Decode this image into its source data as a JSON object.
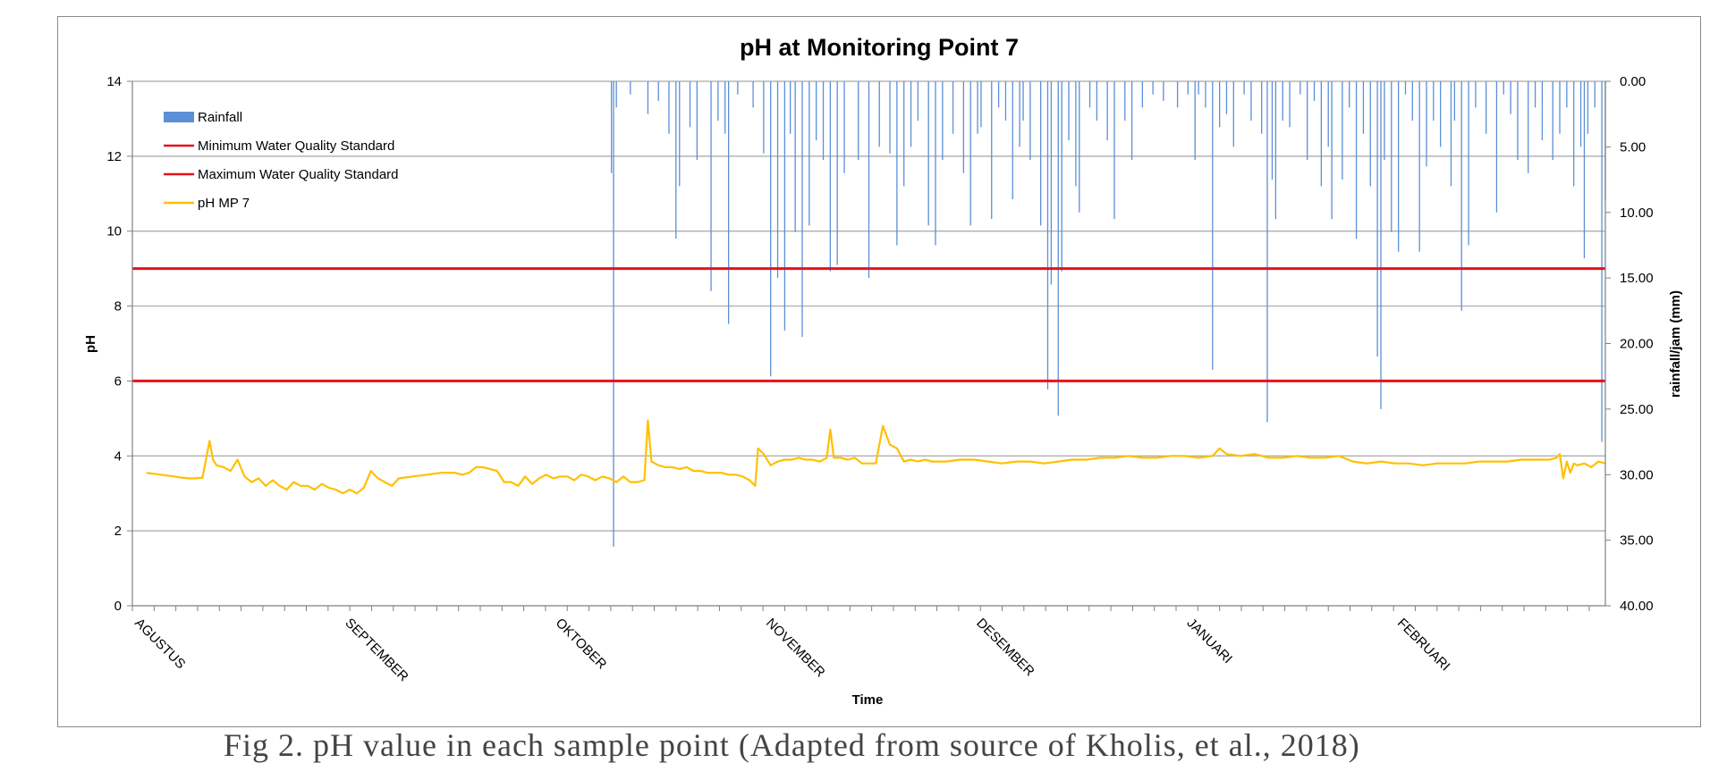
{
  "caption": "Fig 2. pH value in each sample point (Adapted from source of Kholis, et al., 2018)",
  "chart_data": {
    "type": "line",
    "title": "pH at Monitoring Point 7",
    "xlabel": "Time",
    "ylabel_left": "pH",
    "ylabel_right": "rainfall/jam (mm)",
    "ylim_left": [
      0,
      14
    ],
    "ylim_right": [
      0,
      40
    ],
    "right_axis_inverted": true,
    "yticks_left": [
      "0",
      "2",
      "4",
      "6",
      "8",
      "10",
      "12",
      "14"
    ],
    "yticks_right": [
      "0.00",
      "5.00",
      "10.00",
      "15.00",
      "20.00",
      "25.00",
      "30.00",
      "35.00",
      "40.00"
    ],
    "months": [
      "AGUSTUS",
      "SEPTEMBER",
      "OKTOBER",
      "NOVEMBER",
      "DESEMBER",
      "JANUARI",
      "FEBRUARI"
    ],
    "x_days_total": 210,
    "grid": true,
    "legend_position": "top-left",
    "colors": {
      "rainfall": "#5b8fd6",
      "standard": "#e3131b",
      "ph": "#ffc000",
      "grid": "#a6a6a6"
    },
    "legend": [
      {
        "label": "Rainfall",
        "kind": "bar",
        "color": "#5b8fd6"
      },
      {
        "label": "Minimum Water Quality Standard",
        "kind": "line",
        "color": "#e3131b"
      },
      {
        "label": "Maximum Water Quality Standard",
        "kind": "line",
        "color": "#e3131b"
      },
      {
        "label": "pH MP 7",
        "kind": "line",
        "color": "#ffc000"
      }
    ],
    "series": [
      {
        "name": "Minimum Water Quality Standard",
        "constant": 6
      },
      {
        "name": "Maximum Water Quality Standard",
        "constant": 9
      },
      {
        "name": "pH MP 7",
        "points": [
          [
            2,
            3.55
          ],
          [
            4,
            3.5
          ],
          [
            6,
            3.45
          ],
          [
            7,
            3.42
          ],
          [
            8,
            3.4
          ],
          [
            9,
            3.4
          ],
          [
            10,
            3.42
          ],
          [
            11,
            4.4
          ],
          [
            11.5,
            3.9
          ],
          [
            12,
            3.75
          ],
          [
            13,
            3.7
          ],
          [
            14,
            3.6
          ],
          [
            15,
            3.9
          ],
          [
            16,
            3.45
          ],
          [
            17,
            3.3
          ],
          [
            18,
            3.4
          ],
          [
            19,
            3.2
          ],
          [
            20,
            3.35
          ],
          [
            21,
            3.2
          ],
          [
            22,
            3.1
          ],
          [
            23,
            3.3
          ],
          [
            24,
            3.2
          ],
          [
            25,
            3.2
          ],
          [
            26,
            3.1
          ],
          [
            27,
            3.25
          ],
          [
            28,
            3.15
          ],
          [
            29,
            3.1
          ],
          [
            30,
            3.0
          ],
          [
            31,
            3.1
          ],
          [
            32,
            3.0
          ],
          [
            33,
            3.15
          ],
          [
            34,
            3.6
          ],
          [
            35,
            3.4
          ],
          [
            36,
            3.3
          ],
          [
            37,
            3.2
          ],
          [
            38,
            3.4
          ],
          [
            40,
            3.45
          ],
          [
            42,
            3.5
          ],
          [
            44,
            3.55
          ],
          [
            46,
            3.55
          ],
          [
            47,
            3.5
          ],
          [
            48,
            3.55
          ],
          [
            49,
            3.7
          ],
          [
            50,
            3.7
          ],
          [
            51,
            3.65
          ],
          [
            52,
            3.6
          ],
          [
            53,
            3.3
          ],
          [
            54,
            3.3
          ],
          [
            55,
            3.2
          ],
          [
            56,
            3.45
          ],
          [
            57,
            3.25
          ],
          [
            58,
            3.4
          ],
          [
            59,
            3.5
          ],
          [
            60,
            3.4
          ],
          [
            61,
            3.45
          ],
          [
            62,
            3.45
          ],
          [
            63,
            3.35
          ],
          [
            64,
            3.5
          ],
          [
            65,
            3.45
          ],
          [
            66,
            3.35
          ],
          [
            67,
            3.45
          ],
          [
            68,
            3.4
          ],
          [
            69,
            3.3
          ],
          [
            70,
            3.45
          ],
          [
            71,
            3.3
          ],
          [
            72,
            3.3
          ],
          [
            73,
            3.35
          ],
          [
            73.5,
            4.95
          ],
          [
            74,
            3.85
          ],
          [
            75,
            3.75
          ],
          [
            76,
            3.7
          ],
          [
            77,
            3.7
          ],
          [
            78,
            3.65
          ],
          [
            79,
            3.7
          ],
          [
            80,
            3.6
          ],
          [
            81,
            3.6
          ],
          [
            82,
            3.55
          ],
          [
            83,
            3.55
          ],
          [
            84,
            3.55
          ],
          [
            85,
            3.5
          ],
          [
            86,
            3.5
          ],
          [
            87,
            3.45
          ],
          [
            88,
            3.35
          ],
          [
            88.8,
            3.2
          ],
          [
            89.2,
            4.2
          ],
          [
            90,
            4.05
          ],
          [
            91,
            3.75
          ],
          [
            92,
            3.85
          ],
          [
            93,
            3.9
          ],
          [
            94,
            3.9
          ],
          [
            95,
            3.95
          ],
          [
            96,
            3.9
          ],
          [
            97,
            3.9
          ],
          [
            98,
            3.85
          ],
          [
            99,
            3.95
          ],
          [
            99.5,
            4.7
          ],
          [
            100,
            3.95
          ],
          [
            101,
            3.95
          ],
          [
            102,
            3.9
          ],
          [
            103,
            3.95
          ],
          [
            104,
            3.8
          ],
          [
            105,
            3.8
          ],
          [
            106,
            3.8
          ],
          [
            107,
            4.8
          ],
          [
            108,
            4.3
          ],
          [
            109,
            4.2
          ],
          [
            110,
            3.85
          ],
          [
            111,
            3.9
          ],
          [
            112,
            3.85
          ],
          [
            113,
            3.9
          ],
          [
            114,
            3.85
          ],
          [
            116,
            3.85
          ],
          [
            118,
            3.9
          ],
          [
            120,
            3.9
          ],
          [
            122,
            3.85
          ],
          [
            124,
            3.8
          ],
          [
            126,
            3.85
          ],
          [
            128,
            3.85
          ],
          [
            130,
            3.8
          ],
          [
            132,
            3.85
          ],
          [
            134,
            3.9
          ],
          [
            136,
            3.9
          ],
          [
            138,
            3.95
          ],
          [
            140,
            3.95
          ],
          [
            142,
            4.0
          ],
          [
            144,
            3.95
          ],
          [
            146,
            3.95
          ],
          [
            148,
            4.0
          ],
          [
            150,
            4.0
          ],
          [
            152,
            3.95
          ],
          [
            154,
            4.0
          ],
          [
            155,
            4.2
          ],
          [
            156,
            4.05
          ],
          [
            158,
            4.0
          ],
          [
            160,
            4.05
          ],
          [
            162,
            3.95
          ],
          [
            164,
            3.95
          ],
          [
            166,
            4.0
          ],
          [
            168,
            3.95
          ],
          [
            170,
            3.95
          ],
          [
            172,
            4.0
          ],
          [
            174,
            3.85
          ],
          [
            176,
            3.8
          ],
          [
            178,
            3.85
          ],
          [
            180,
            3.8
          ],
          [
            182,
            3.8
          ],
          [
            184,
            3.75
          ],
          [
            186,
            3.8
          ],
          [
            188,
            3.8
          ],
          [
            190,
            3.8
          ],
          [
            192,
            3.85
          ],
          [
            194,
            3.85
          ],
          [
            196,
            3.85
          ],
          [
            198,
            3.9
          ],
          [
            200,
            3.9
          ],
          [
            202,
            3.9
          ],
          [
            203,
            3.95
          ],
          [
            203.5,
            4.05
          ],
          [
            204,
            3.4
          ],
          [
            204.5,
            3.85
          ],
          [
            205,
            3.55
          ],
          [
            205.5,
            3.8
          ],
          [
            206,
            3.75
          ],
          [
            207,
            3.8
          ],
          [
            208,
            3.7
          ],
          [
            209,
            3.85
          ],
          [
            210,
            3.8
          ]
        ]
      },
      {
        "name": "Rainfall",
        "bars": [
          [
            68.3,
            7
          ],
          [
            68.6,
            35.5
          ],
          [
            69,
            2
          ],
          [
            71,
            1
          ],
          [
            73.5,
            2.5
          ],
          [
            75,
            1.5
          ],
          [
            76.5,
            4
          ],
          [
            77.5,
            12
          ],
          [
            78,
            8
          ],
          [
            79.5,
            3.5
          ],
          [
            80.5,
            6
          ],
          [
            82.5,
            16
          ],
          [
            83.5,
            3
          ],
          [
            84.5,
            4
          ],
          [
            85,
            18.5
          ],
          [
            86.3,
            1
          ],
          [
            88.5,
            2
          ],
          [
            90,
            5.5
          ],
          [
            91,
            22.5
          ],
          [
            92,
            15
          ],
          [
            93,
            19
          ],
          [
            93.8,
            4
          ],
          [
            94.5,
            11.5
          ],
          [
            95.5,
            19.5
          ],
          [
            96.5,
            11
          ],
          [
            97.5,
            4.5
          ],
          [
            98.5,
            6
          ],
          [
            99.5,
            14.5
          ],
          [
            100.5,
            14
          ],
          [
            101.5,
            7
          ],
          [
            103.5,
            6
          ],
          [
            105,
            15
          ],
          [
            106.5,
            5
          ],
          [
            108,
            5.5
          ],
          [
            109,
            12.5
          ],
          [
            110,
            8
          ],
          [
            111,
            5
          ],
          [
            112,
            3
          ],
          [
            113.5,
            11
          ],
          [
            114.5,
            12.5
          ],
          [
            115.5,
            6
          ],
          [
            117,
            4
          ],
          [
            118.5,
            7
          ],
          [
            119.5,
            11
          ],
          [
            120.5,
            4
          ],
          [
            121,
            3.5
          ],
          [
            122.5,
            10.5
          ],
          [
            123.5,
            2
          ],
          [
            124.5,
            3
          ],
          [
            125.5,
            9
          ],
          [
            126.5,
            5
          ],
          [
            127,
            3
          ],
          [
            128,
            6
          ],
          [
            129.5,
            11
          ],
          [
            130.5,
            23.5
          ],
          [
            131,
            15.5
          ],
          [
            132,
            25.5
          ],
          [
            132.5,
            14.5
          ],
          [
            133.5,
            4.5
          ],
          [
            134.5,
            8
          ],
          [
            135,
            10
          ],
          [
            136.5,
            2
          ],
          [
            137.5,
            3
          ],
          [
            139,
            4.5
          ],
          [
            140,
            10.5
          ],
          [
            141.5,
            3
          ],
          [
            142.5,
            6
          ],
          [
            144,
            2
          ],
          [
            145.5,
            1
          ],
          [
            147,
            1.5
          ],
          [
            149,
            2
          ],
          [
            150.5,
            1
          ],
          [
            151.5,
            6
          ],
          [
            152,
            1
          ],
          [
            153,
            2
          ],
          [
            154,
            22
          ],
          [
            155,
            3.5
          ],
          [
            156,
            2.5
          ],
          [
            157,
            5
          ],
          [
            158.5,
            1
          ],
          [
            159.5,
            3
          ],
          [
            161,
            4
          ],
          [
            161.8,
            26
          ],
          [
            162.5,
            7.5
          ],
          [
            163,
            10.5
          ],
          [
            164,
            3
          ],
          [
            165,
            3.5
          ],
          [
            166.5,
            1
          ],
          [
            167.5,
            6
          ],
          [
            168.5,
            1.5
          ],
          [
            169.5,
            8
          ],
          [
            170.5,
            5
          ],
          [
            171,
            10.5
          ],
          [
            172.5,
            7.5
          ],
          [
            173.5,
            2
          ],
          [
            174.5,
            12
          ],
          [
            175.5,
            4
          ],
          [
            176.5,
            8
          ],
          [
            177.5,
            21
          ],
          [
            178,
            25
          ],
          [
            178.5,
            6
          ],
          [
            179.5,
            11.5
          ],
          [
            180.5,
            13
          ],
          [
            181.5,
            1
          ],
          [
            182.5,
            3
          ],
          [
            183.5,
            13
          ],
          [
            184.5,
            6.5
          ],
          [
            185.5,
            3
          ],
          [
            186.5,
            5
          ],
          [
            188,
            8
          ],
          [
            188.5,
            3
          ],
          [
            189.5,
            17.5
          ],
          [
            190.5,
            12.5
          ],
          [
            191.5,
            2
          ],
          [
            193,
            4
          ],
          [
            194.5,
            10
          ],
          [
            195.5,
            1
          ],
          [
            196.5,
            2.5
          ],
          [
            197.5,
            6
          ],
          [
            199,
            7
          ],
          [
            200,
            2
          ],
          [
            201,
            4.5
          ],
          [
            202.5,
            6
          ],
          [
            203.5,
            4
          ],
          [
            204.5,
            2
          ],
          [
            205.5,
            8
          ],
          [
            206.5,
            5
          ],
          [
            207,
            13.5
          ],
          [
            207.5,
            4
          ],
          [
            208.5,
            2
          ],
          [
            209.5,
            27.5
          ],
          [
            210,
            9
          ]
        ]
      }
    ]
  }
}
